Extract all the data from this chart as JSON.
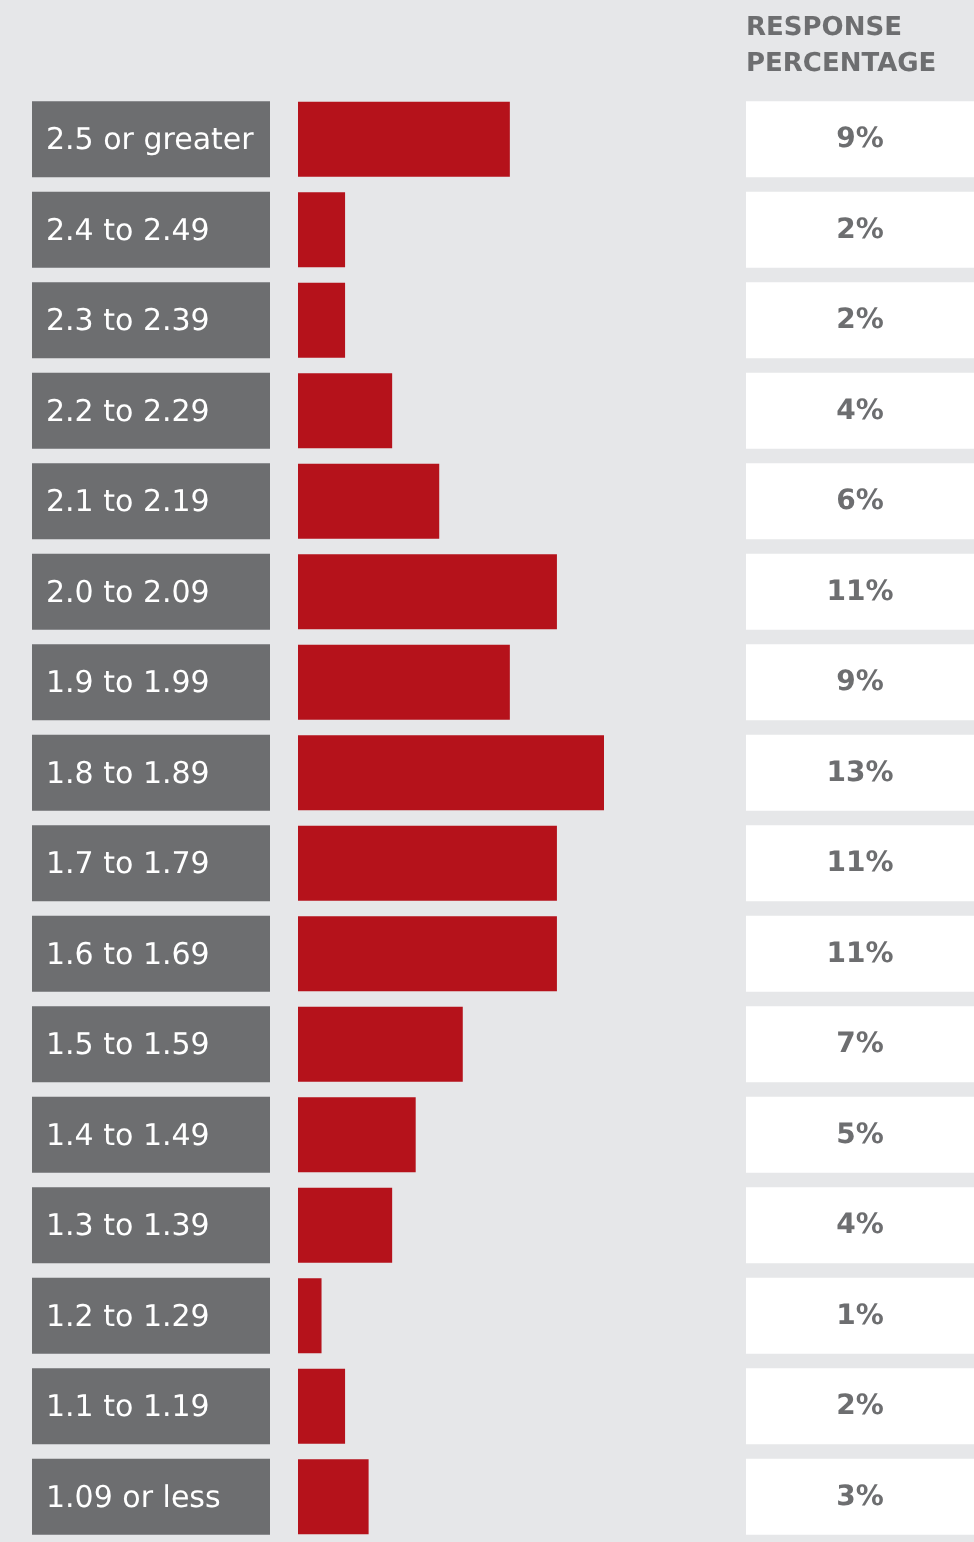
{
  "chart_data": {
    "type": "bar",
    "orientation": "horizontal",
    "categories": [
      "2.5 or greater",
      "2.4 to 2.49",
      "2.3 to 2.39",
      "2.2 to 2.29",
      "2.1 to 2.19",
      "2.0 to 2.09",
      "1.9 to 1.99",
      "1.8 to 1.89",
      "1.7 to 1.79",
      "1.6 to 1.69",
      "1.5 to 1.59",
      "1.4 to 1.49",
      "1.3 to 1.39",
      "1.2 to 1.29",
      "1.1 to 1.19",
      "1.09 or less"
    ],
    "values": [
      9,
      2,
      2,
      4,
      6,
      11,
      9,
      13,
      11,
      11,
      7,
      5,
      4,
      1,
      2,
      3
    ],
    "value_labels": [
      "9%",
      "2%",
      "2%",
      "4%",
      "6%",
      "11%",
      "9%",
      "13%",
      "11%",
      "11%",
      "7%",
      "5%",
      "4%",
      "1%",
      "2%",
      "3%"
    ],
    "color": "#b5121b",
    "annotations": [
      "RESPONSE PERCENTAGE"
    ],
    "grid": false
  }
}
